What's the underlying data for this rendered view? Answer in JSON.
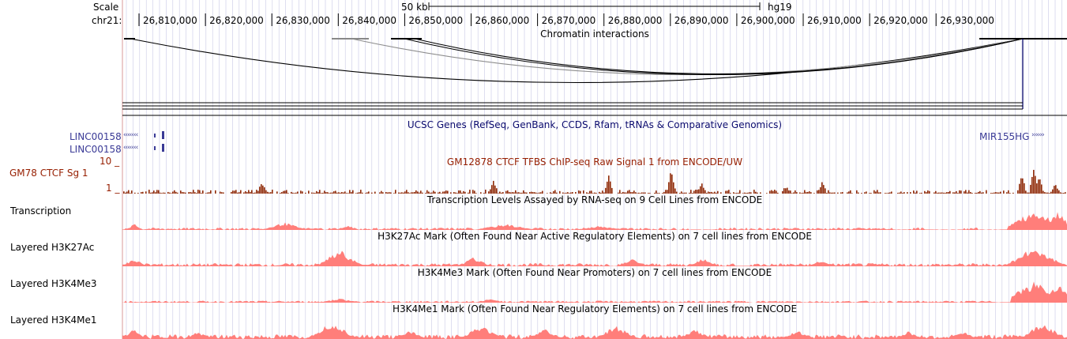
{
  "colors": {
    "grid": "#c8c8e6",
    "gene": "#3a3a96",
    "genes_title": "#0a0a6e",
    "ctcf": "#8f2a08",
    "ctcf_title": "#961e00",
    "signal": "#ff7e7a",
    "arc": "#000000",
    "arc_gray": "#8c8c8c",
    "boundary": "#d89898"
  },
  "ruler": {
    "scale_label": "Scale",
    "chrom_label": "chr21:",
    "scale_text": "50 kb",
    "assembly": "hg19",
    "ticks": [
      "26,810,000",
      "26,820,000",
      "26,830,000",
      "26,840,000",
      "26,850,000",
      "26,860,000",
      "26,870,000",
      "26,880,000",
      "26,890,000",
      "26,900,000",
      "26,910,000",
      "26,920,000",
      "26,930,000"
    ]
  },
  "tracks": {
    "chromatin": {
      "title": "Chromatin interactions"
    },
    "genes": {
      "title": "UCSC Genes (RefSeq, GenBank, CCDS, Rfam, tRNAs & Comparative Genomics)",
      "left_gene_1": "LINC00158",
      "left_gene_2": "LINC00158",
      "right_gene": "MIR155HG",
      "arrows_left": "‹‹‹‹‹‹‹",
      "arrows_right": "››››››"
    },
    "ctcf": {
      "label": "GM78 CTCF Sg 1",
      "title": "GM12878 CTCF TFBS ChIP-seq Raw Signal 1 from ENCODE/UW",
      "max": "10 _",
      "min": "1 _"
    },
    "transcription": {
      "label": "Transcription",
      "title": "Transcription Levels Assayed by RNA-seq on 9 Cell Lines from ENCODE"
    },
    "h3k27ac": {
      "label": "Layered H3K27Ac",
      "title": "H3K27Ac Mark (Often Found Near Active Regulatory Elements) on 7 cell lines from ENCODE"
    },
    "h3k4me3": {
      "label": "Layered H3K4Me3",
      "title": "H3K4Me3 Mark (Often Found Near Promoters) on 7 cell lines from ENCODE"
    },
    "h3k4me1": {
      "label": "Layered H3K4Me1",
      "title": "H3K4Me1 Mark (Often Found Near Regulatory Elements) on 7 cell lines from ENCODE"
    }
  }
}
